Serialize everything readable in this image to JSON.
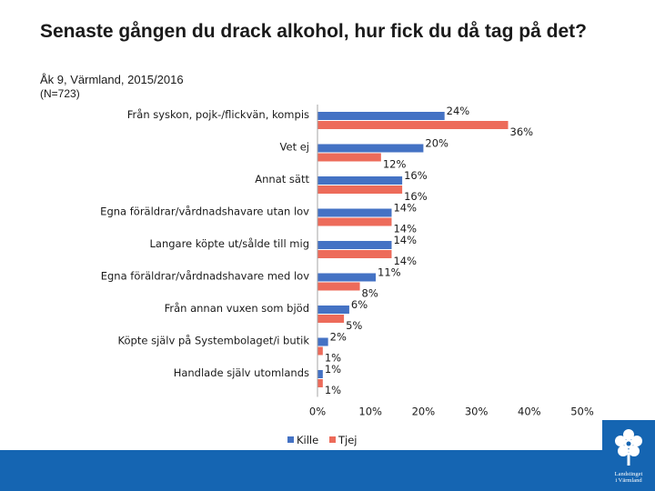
{
  "title": "Senaste gången du drack alkohol, hur fick du då tag på det?",
  "subtitle": "Åk 9, Värmland, 2015/2016",
  "n_label": "(N=723)",
  "logo": {
    "icon": "flower-emblem-icon",
    "text_line1": "Landstinget",
    "text_line2": "i Värmland"
  },
  "colors": {
    "kille": "#4472c4",
    "tjej": "#ed6b5a",
    "footer": "#1565b2"
  },
  "chart_data": {
    "type": "bar",
    "orientation": "horizontal",
    "categories": [
      "Från syskon, pojk-/flickvän, kompis",
      "Vet ej",
      "Annat sätt",
      "Egna föräldrar/vårdnadshavare utan lov",
      "Langare köpte ut/sålde till mig",
      "Egna föräldrar/vårdnadshavare med lov",
      "Från annan vuxen som bjöd",
      "Köpte själv på Systembolaget/i butik",
      "Handlade själv utomlands"
    ],
    "series": [
      {
        "name": "Kille",
        "values": [
          24,
          20,
          16,
          14,
          14,
          11,
          6,
          2,
          1
        ]
      },
      {
        "name": "Tjej",
        "values": [
          36,
          12,
          16,
          14,
          14,
          8,
          5,
          1,
          1
        ]
      }
    ],
    "xlim": [
      0,
      50
    ],
    "xticks": [
      0,
      10,
      20,
      30,
      40,
      50
    ],
    "tick_suffix": "%",
    "value_suffix": "%",
    "legend": "bottom",
    "grid": false
  }
}
